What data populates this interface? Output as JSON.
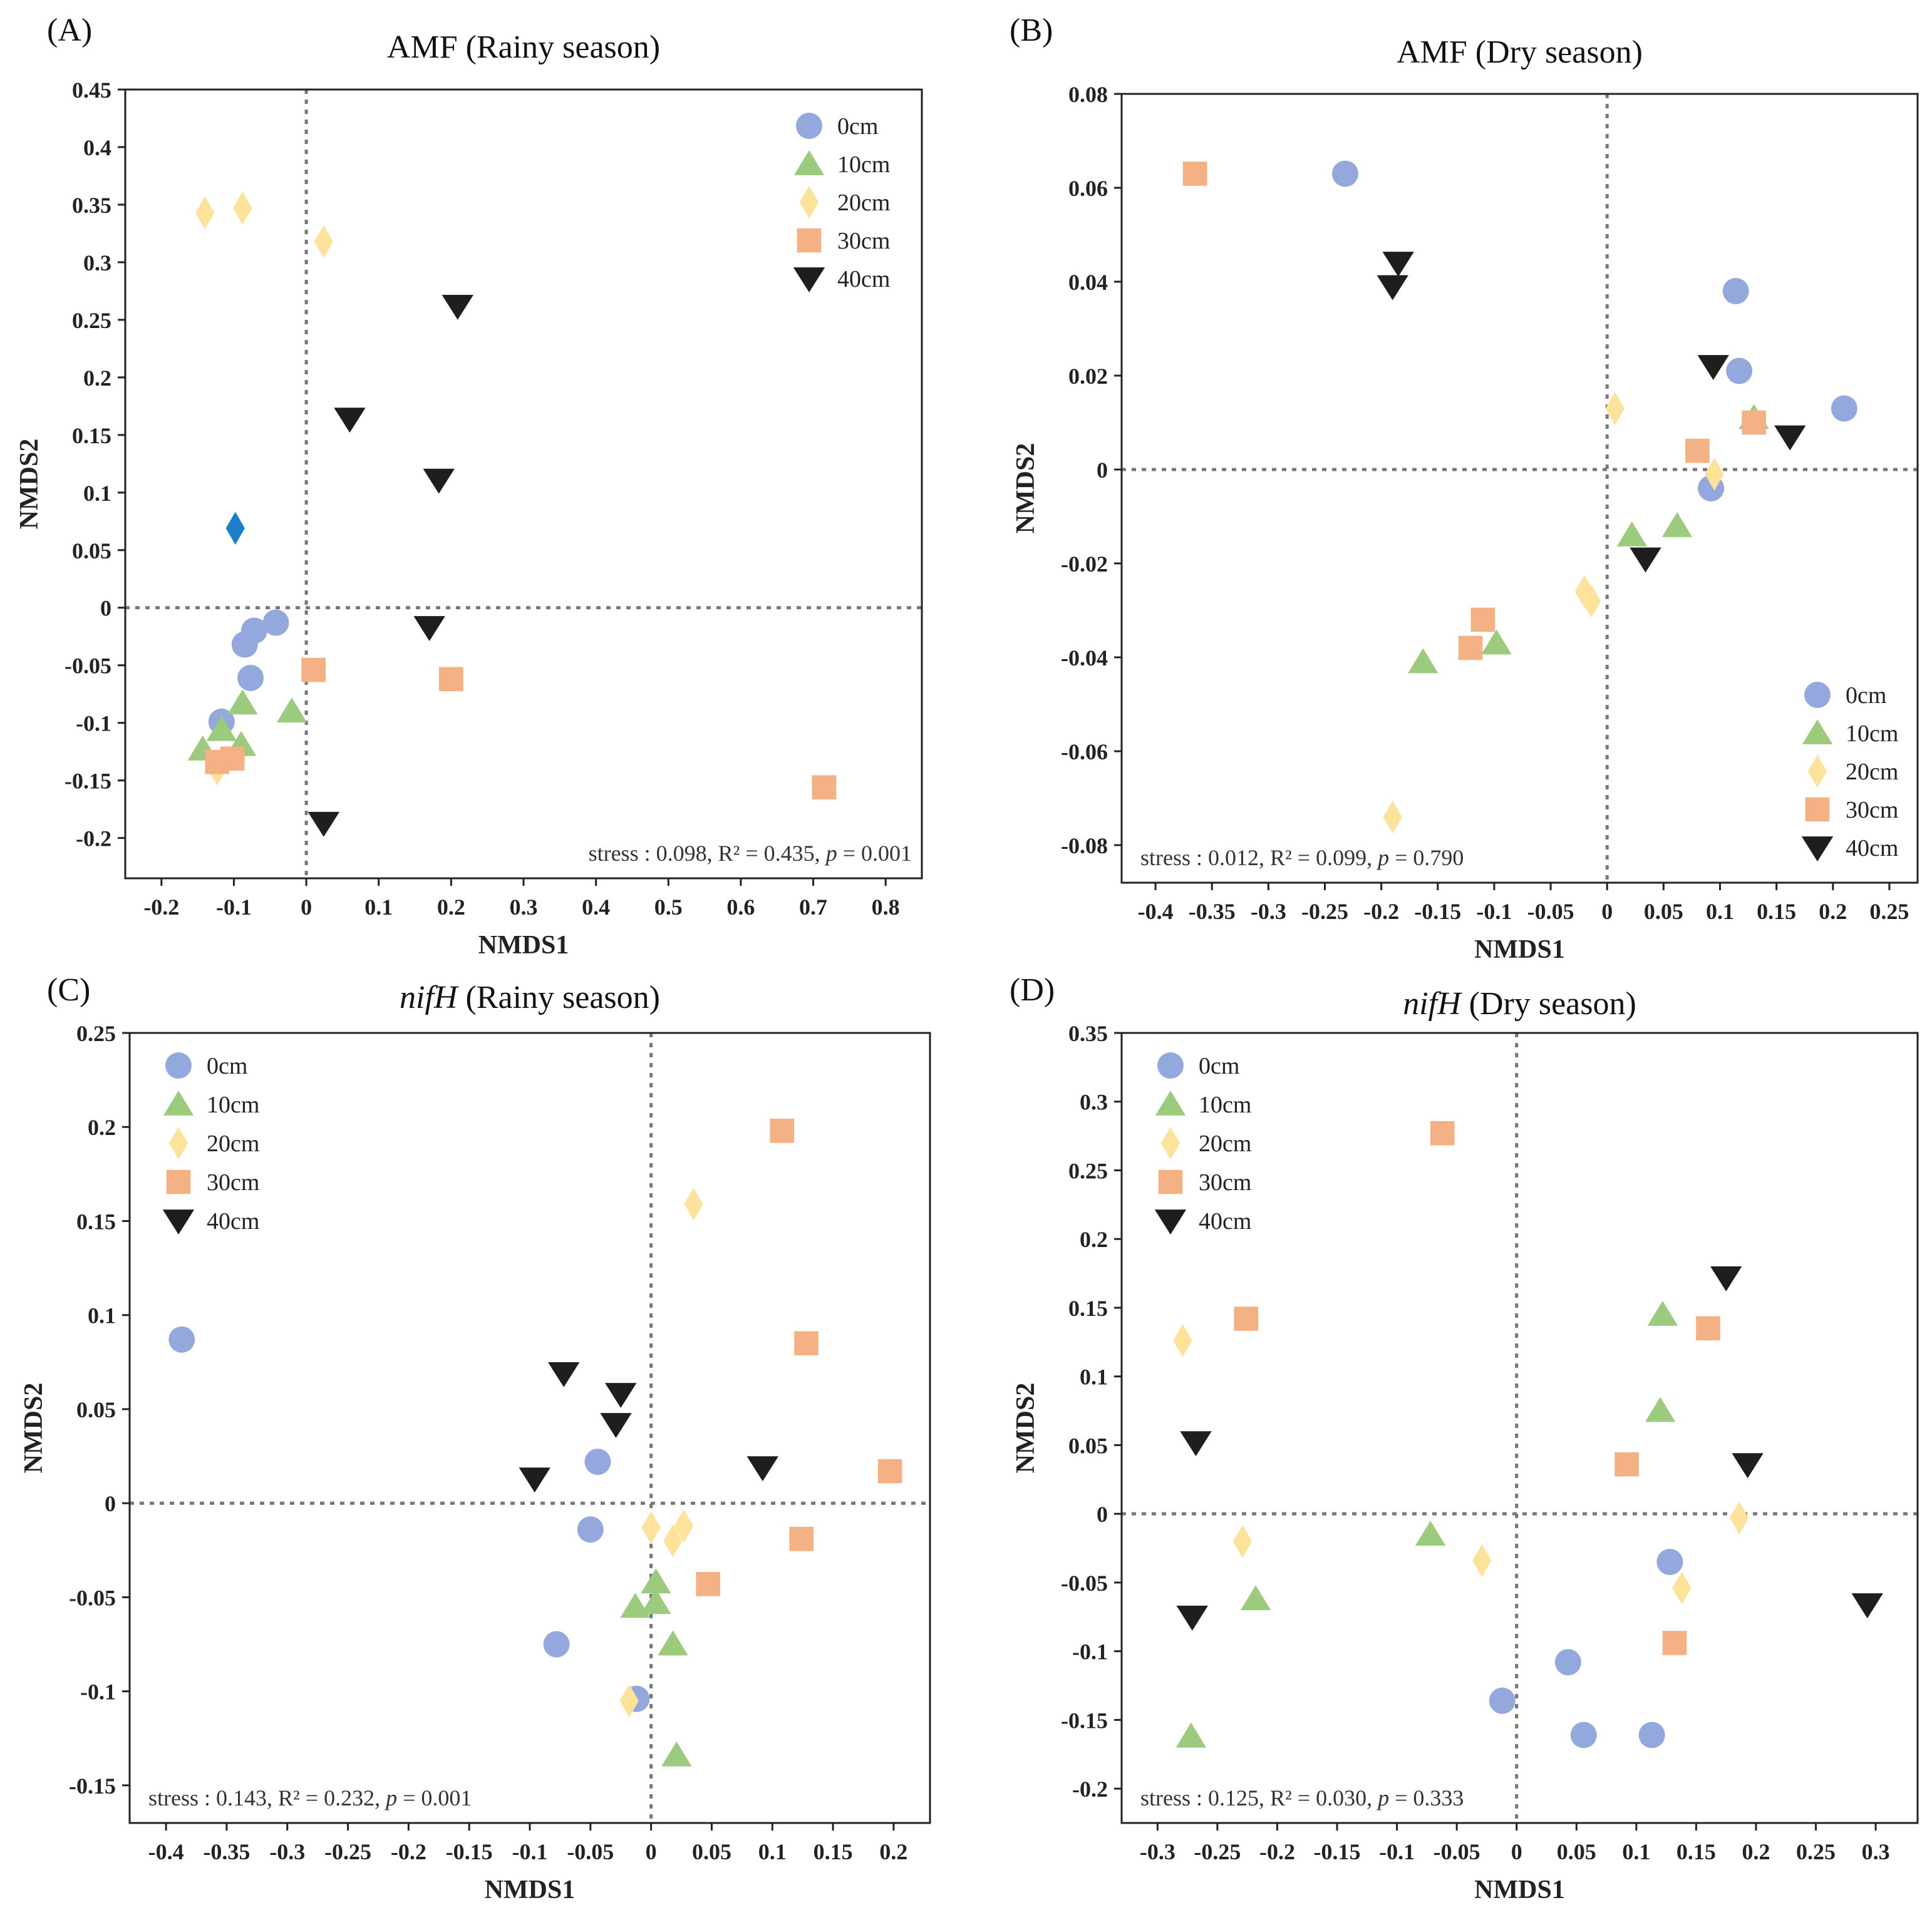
{
  "colors": {
    "0cm": "#93a9de",
    "10cm": "#9ccb7e",
    "20cm": "#fde29a",
    "30cm": "#f3b184",
    "40cm": "#1e1e1e",
    "outlier": "#1a7fc8"
  },
  "chart_data": [
    {
      "type": "scatter",
      "panel_label": "(A)",
      "title": "AMF (Rainy season)",
      "title_italic": "",
      "title_rest": "AMF (Rainy season)",
      "xlabel": "NMDS1",
      "ylabel": "NMDS2",
      "xlim": [
        -0.25,
        0.85
      ],
      "ylim": [
        -0.235,
        0.45
      ],
      "xticks": [
        -0.2,
        -0.1,
        0,
        0.1,
        0.2,
        0.3,
        0.4,
        0.5,
        0.6,
        0.7,
        0.8
      ],
      "xtick_labels": [
        "-0.2",
        "-0.1",
        "0",
        "0.1",
        "0.2",
        "0.3",
        "0.4",
        "0.5",
        "0.6",
        "0.7",
        "0.8"
      ],
      "yticks": [
        -0.2,
        -0.15,
        -0.1,
        -0.05,
        0,
        0.05,
        0.1,
        0.15,
        0.2,
        0.25,
        0.3,
        0.35,
        0.4,
        0.45
      ],
      "ytick_labels": [
        "-0.2",
        "-0.15",
        "-0.1",
        "-0.05",
        "0",
        "0.05",
        "0.1",
        "0.15",
        "0.2",
        "0.25",
        "0.3",
        "0.35",
        "0.4",
        "0.45"
      ],
      "legend_position": "top-right",
      "stats": {
        "stress": "stress : 0.098, ",
        "r2": "R² = 0.435, ",
        "p_label": "p",
        "p_value": " = 0.001"
      },
      "series": [
        {
          "name": "0cm",
          "marker": "circle",
          "points": [
            [
              -0.042,
              -0.013
            ],
            [
              -0.072,
              -0.02
            ],
            [
              -0.085,
              -0.032
            ],
            [
              -0.077,
              -0.061
            ],
            [
              -0.117,
              -0.099
            ]
          ]
        },
        {
          "name": "10cm",
          "marker": "triangle",
          "points": [
            [
              -0.088,
              -0.083
            ],
            [
              -0.02,
              -0.09
            ],
            [
              -0.117,
              -0.106
            ],
            [
              -0.09,
              -0.119
            ],
            [
              -0.143,
              -0.123
            ]
          ]
        },
        {
          "name": "20cm",
          "marker": "diamond",
          "points": [
            [
              -0.14,
              0.343
            ],
            [
              -0.088,
              0.347
            ],
            [
              0.024,
              0.318
            ],
            [
              -0.123,
              -0.14
            ]
          ]
        },
        {
          "name": "20cm-outlier",
          "marker": "diamond",
          "color_key": "outlier",
          "legend": false,
          "points": [
            [
              -0.098,
              0.069
            ]
          ]
        },
        {
          "name": "30cm",
          "marker": "square",
          "points": [
            [
              0.01,
              -0.054
            ],
            [
              0.2,
              -0.062
            ],
            [
              0.715,
              -0.156
            ],
            [
              -0.123,
              -0.134
            ],
            [
              -0.102,
              -0.131
            ]
          ]
        },
        {
          "name": "40cm",
          "marker": "triangle-down",
          "points": [
            [
              0.209,
              0.262
            ],
            [
              0.06,
              0.164
            ],
            [
              0.183,
              0.111
            ],
            [
              0.17,
              -0.017
            ],
            [
              0.024,
              -0.187
            ]
          ]
        }
      ]
    },
    {
      "type": "scatter",
      "panel_label": "(B)",
      "title": "AMF (Dry season)",
      "title_italic": "",
      "title_rest": "AMF (Dry season)",
      "xlabel": "NMDS1",
      "ylabel": "NMDS2",
      "xlim": [
        -0.43,
        0.275
      ],
      "ylim": [
        -0.088,
        0.08
      ],
      "xticks": [
        -0.4,
        -0.35,
        -0.3,
        -0.25,
        -0.2,
        -0.15,
        -0.1,
        -0.05,
        0,
        0.05,
        0.1,
        0.15,
        0.2,
        0.25
      ],
      "xtick_labels": [
        "-0.4",
        "-0.35",
        "-0.3",
        "-0.25",
        "-0.2",
        "-0.15",
        "-0.1",
        "-0.05",
        "0",
        "0.05",
        "0.1",
        "0.15",
        "0.2",
        "0.25"
      ],
      "yticks": [
        -0.08,
        -0.06,
        -0.04,
        -0.02,
        0,
        0.02,
        0.04,
        0.06,
        0.08
      ],
      "ytick_labels": [
        "-0.08",
        "-0.06",
        "-0.04",
        "-0.02",
        "0",
        "0.02",
        "0.04",
        "0.06",
        "0.08"
      ],
      "legend_position": "bottom-right",
      "stats": {
        "stress": "stress : 0.012, ",
        "r2": "R² = 0.099, ",
        "p_label": "p",
        "p_value": " = 0.790"
      },
      "series": [
        {
          "name": "0cm",
          "marker": "circle",
          "points": [
            [
              -0.232,
              0.063
            ],
            [
              0.114,
              0.038
            ],
            [
              0.117,
              0.021
            ],
            [
              0.21,
              0.013
            ],
            [
              0.092,
              -0.004
            ]
          ]
        },
        {
          "name": "10cm",
          "marker": "triangle",
          "points": [
            [
              0.022,
              -0.014
            ],
            [
              0.062,
              -0.012
            ],
            [
              -0.098,
              -0.037
            ],
            [
              -0.163,
              -0.041
            ],
            [
              0.13,
              0.011
            ]
          ]
        },
        {
          "name": "20cm",
          "marker": "diamond",
          "points": [
            [
              0.007,
              0.013
            ],
            [
              0.095,
              -0.001
            ],
            [
              -0.02,
              -0.026
            ],
            [
              -0.014,
              -0.028
            ],
            [
              -0.19,
              -0.074
            ]
          ]
        },
        {
          "name": "30cm",
          "marker": "square",
          "points": [
            [
              -0.365,
              0.063
            ],
            [
              0.08,
              0.004
            ],
            [
              0.13,
              0.01
            ],
            [
              -0.11,
              -0.032
            ],
            [
              -0.121,
              -0.038
            ]
          ]
        },
        {
          "name": "40cm",
          "marker": "triangle-down",
          "points": [
            [
              -0.185,
              0.044
            ],
            [
              -0.19,
              0.039
            ],
            [
              0.094,
              0.022
            ],
            [
              0.162,
              0.007
            ],
            [
              0.034,
              -0.019
            ]
          ]
        }
      ]
    },
    {
      "type": "scatter",
      "panel_label": "(C)",
      "title": "nifH (Rainy season)",
      "title_italic": "nifH",
      "title_rest": " (Rainy season)",
      "xlabel": "NMDS1",
      "ylabel": "NMDS2",
      "xlim": [
        -0.43,
        0.23
      ],
      "ylim": [
        -0.17,
        0.25
      ],
      "xticks": [
        -0.4,
        -0.35,
        -0.3,
        -0.25,
        -0.2,
        -0.15,
        -0.1,
        -0.05,
        0,
        0.05,
        0.1,
        0.15,
        0.2
      ],
      "xtick_labels": [
        "-0.4",
        "-0.35",
        "-0.3",
        "-0.25",
        "-0.2",
        "-0.15",
        "-0.1",
        "-0.05",
        "0",
        "0.05",
        "0.1",
        "0.15",
        "0.2"
      ],
      "yticks": [
        -0.15,
        -0.1,
        -0.05,
        0,
        0.05,
        0.1,
        0.15,
        0.2,
        0.25
      ],
      "ytick_labels": [
        "-0.15",
        "-0.1",
        "-0.05",
        "0",
        "0.05",
        "0.1",
        "0.15",
        "0.2",
        "0.25"
      ],
      "legend_position": "top-left",
      "stats": {
        "stress": "stress : 0.143, ",
        "r2": "R² = 0.232, ",
        "p_label": "p",
        "p_value": " = 0.001"
      },
      "series": [
        {
          "name": "0cm",
          "marker": "circle",
          "points": [
            [
              -0.387,
              0.087
            ],
            [
              -0.044,
              0.022
            ],
            [
              -0.05,
              -0.014
            ],
            [
              -0.078,
              -0.075
            ],
            [
              -0.012,
              -0.104
            ]
          ]
        },
        {
          "name": "10cm",
          "marker": "triangle",
          "points": [
            [
              0.004,
              -0.042
            ],
            [
              0.004,
              -0.053
            ],
            [
              -0.013,
              -0.055
            ],
            [
              0.018,
              -0.075
            ],
            [
              0.021,
              -0.134
            ]
          ]
        },
        {
          "name": "20cm",
          "marker": "diamond",
          "points": [
            [
              0.035,
              0.159
            ],
            [
              0.0,
              -0.013
            ],
            [
              0.027,
              -0.012
            ],
            [
              0.018,
              -0.02
            ],
            [
              -0.018,
              -0.105
            ]
          ]
        },
        {
          "name": "30cm",
          "marker": "square",
          "points": [
            [
              0.108,
              0.198
            ],
            [
              0.128,
              0.085
            ],
            [
              0.197,
              0.017
            ],
            [
              0.124,
              -0.019
            ],
            [
              0.047,
              -0.043
            ]
          ]
        },
        {
          "name": "40cm",
          "marker": "triangle-down",
          "points": [
            [
              -0.072,
              0.069
            ],
            [
              -0.025,
              0.058
            ],
            [
              -0.029,
              0.042
            ],
            [
              -0.096,
              0.013
            ],
            [
              0.092,
              0.019
            ]
          ]
        }
      ]
    },
    {
      "type": "scatter",
      "panel_label": "(D)",
      "title": "nifH (Dry season)",
      "title_italic": "nifH",
      "title_rest": " (Dry season)",
      "xlabel": "NMDS1",
      "ylabel": "NMDS2",
      "xlim": [
        -0.33,
        0.335
      ],
      "ylim": [
        -0.225,
        0.35
      ],
      "xticks": [
        -0.3,
        -0.25,
        -0.2,
        -0.15,
        -0.1,
        -0.05,
        0,
        0.05,
        0.1,
        0.15,
        0.2,
        0.25,
        0.3
      ],
      "xtick_labels": [
        "-0.3",
        "-0.25",
        "-0.2",
        "-0.15",
        "-0.1",
        "-0.05",
        "0",
        "0.05",
        "0.1",
        "0.15",
        "0.2",
        "0.25",
        "0.3"
      ],
      "yticks": [
        -0.2,
        -0.15,
        -0.1,
        -0.05,
        0,
        0.05,
        0.1,
        0.15,
        0.2,
        0.25,
        0.3,
        0.35
      ],
      "ytick_labels": [
        "-0.2",
        "-0.15",
        "-0.1",
        "-0.05",
        "0",
        "0.05",
        "0.1",
        "0.15",
        "0.2",
        "0.25",
        "0.3",
        "0.35"
      ],
      "legend_position": "top-left",
      "stats": {
        "stress": "stress : 0.125, ",
        "r2": "R² = 0.030, ",
        "p_label": "p",
        "p_value": " = 0.333"
      },
      "series": [
        {
          "name": "0cm",
          "marker": "circle",
          "points": [
            [
              0.128,
              -0.035
            ],
            [
              0.043,
              -0.108
            ],
            [
              -0.012,
              -0.136
            ],
            [
              0.056,
              -0.161
            ],
            [
              0.113,
              -0.161
            ]
          ]
        },
        {
          "name": "10cm",
          "marker": "triangle",
          "points": [
            [
              0.122,
              0.145
            ],
            [
              0.12,
              0.075
            ],
            [
              -0.072,
              -0.015
            ],
            [
              -0.218,
              -0.062
            ],
            [
              -0.272,
              -0.162
            ]
          ]
        },
        {
          "name": "20cm",
          "marker": "diamond",
          "points": [
            [
              -0.279,
              0.126
            ],
            [
              -0.229,
              -0.02
            ],
            [
              -0.029,
              -0.034
            ],
            [
              0.186,
              -0.003
            ],
            [
              0.138,
              -0.054
            ]
          ]
        },
        {
          "name": "30cm",
          "marker": "square",
          "points": [
            [
              -0.062,
              0.277
            ],
            [
              -0.226,
              0.142
            ],
            [
              0.16,
              0.135
            ],
            [
              0.092,
              0.036
            ],
            [
              0.132,
              -0.094
            ]
          ]
        },
        {
          "name": "40cm",
          "marker": "triangle-down",
          "points": [
            [
              0.175,
              0.172
            ],
            [
              -0.268,
              0.052
            ],
            [
              0.193,
              0.036
            ],
            [
              -0.271,
              -0.075
            ],
            [
              0.293,
              -0.066
            ]
          ]
        }
      ]
    }
  ]
}
